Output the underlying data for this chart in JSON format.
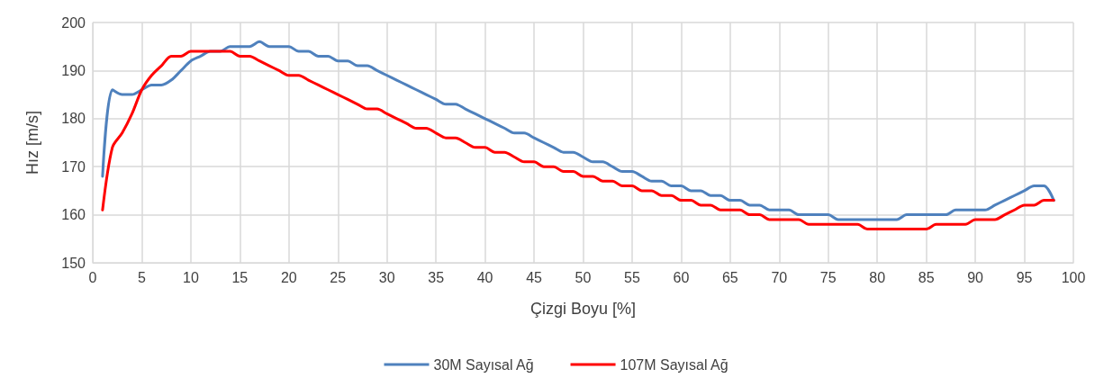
{
  "chart_data": {
    "type": "line",
    "xlabel": "Çizgi Boyu [%]",
    "ylabel": "Hız [m/s]",
    "x": [
      1,
      2,
      3,
      4,
      5,
      6,
      7,
      8,
      9,
      10,
      11,
      12,
      13,
      14,
      15,
      16,
      17,
      18,
      19,
      20,
      21,
      22,
      23,
      24,
      25,
      26,
      27,
      28,
      29,
      30,
      31,
      32,
      33,
      34,
      35,
      36,
      37,
      38,
      39,
      40,
      41,
      42,
      43,
      44,
      45,
      46,
      47,
      48,
      49,
      50,
      51,
      52,
      53,
      54,
      55,
      56,
      57,
      58,
      59,
      60,
      61,
      62,
      63,
      64,
      65,
      66,
      67,
      68,
      69,
      70,
      71,
      72,
      73,
      74,
      75,
      76,
      77,
      78,
      79,
      80,
      81,
      82,
      83,
      84,
      85,
      86,
      87,
      88,
      89,
      90,
      91,
      92,
      93,
      94,
      95,
      96,
      97,
      98
    ],
    "series": [
      {
        "name": "30M Sayısal Ağ",
        "color": "#4f81bd",
        "values": [
          168,
          186,
          185,
          185,
          186,
          187,
          187,
          188,
          190,
          192,
          193,
          194,
          194,
          195,
          195,
          195,
          196,
          195,
          195,
          195,
          194,
          194,
          193,
          193,
          192,
          192,
          191,
          191,
          190,
          189,
          188,
          187,
          186,
          185,
          184,
          183,
          183,
          182,
          181,
          180,
          179,
          178,
          177,
          177,
          176,
          175,
          174,
          173,
          173,
          172,
          171,
          171,
          170,
          169,
          169,
          168,
          167,
          167,
          166,
          166,
          165,
          165,
          164,
          164,
          163,
          163,
          162,
          162,
          161,
          161,
          161,
          160,
          160,
          160,
          160,
          159,
          159,
          159,
          159,
          159,
          159,
          159,
          160,
          160,
          160,
          160,
          160,
          161,
          161,
          161,
          161,
          162,
          163,
          164,
          165,
          166,
          166,
          163
        ]
      },
      {
        "name": "107M Sayısal Ağ",
        "color": "#ff0000",
        "values": [
          161,
          174,
          177,
          181,
          186,
          189,
          191,
          193,
          193,
          194,
          194,
          194,
          194,
          194,
          193,
          193,
          192,
          191,
          190,
          189,
          189,
          188,
          187,
          186,
          185,
          184,
          183,
          182,
          182,
          181,
          180,
          179,
          178,
          178,
          177,
          176,
          176,
          175,
          174,
          174,
          173,
          173,
          172,
          171,
          171,
          170,
          170,
          169,
          169,
          168,
          168,
          167,
          167,
          166,
          166,
          165,
          165,
          164,
          164,
          163,
          163,
          162,
          162,
          161,
          161,
          161,
          160,
          160,
          159,
          159,
          159,
          159,
          158,
          158,
          158,
          158,
          158,
          158,
          157,
          157,
          157,
          157,
          157,
          157,
          157,
          158,
          158,
          158,
          158,
          159,
          159,
          159,
          160,
          161,
          162,
          162,
          163,
          163
        ]
      }
    ],
    "xlim": [
      0,
      100
    ],
    "xticks": [
      0,
      5,
      10,
      15,
      20,
      25,
      30,
      35,
      40,
      45,
      50,
      55,
      60,
      65,
      70,
      75,
      80,
      85,
      90,
      95,
      100
    ],
    "ylim": [
      150,
      200
    ],
    "yticks": [
      150,
      160,
      170,
      180,
      190,
      200
    ],
    "grid": true,
    "legend": "bottom",
    "marker": "none",
    "line_style": "solid"
  }
}
